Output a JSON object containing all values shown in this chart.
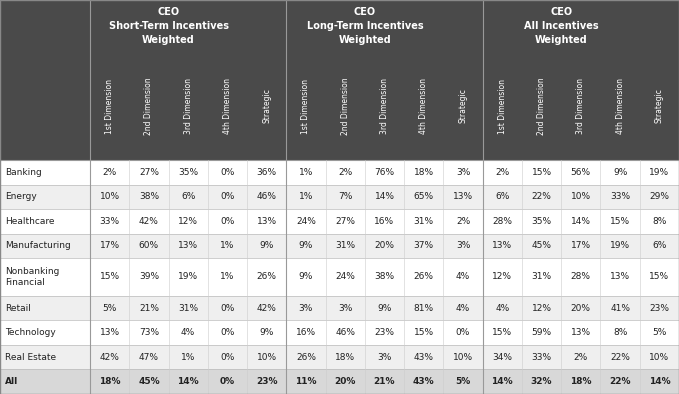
{
  "header_bg": "#4a4a4a",
  "header_text_color": "#ffffff",
  "text_color": "#222222",
  "group_headers": [
    "CEO\nShort-Term Incentives\nWeighted",
    "CEO\nLong-Term Incentives\nWeighted",
    "CEO\nAll Incentives\nWeighted"
  ],
  "col_headers": [
    "1st Dimension",
    "2nd Dimension",
    "3rd Dimension",
    "4th Dimension",
    "Strategic",
    "1st Dimension",
    "2nd Dimension",
    "3rd Dimension",
    "4th Dimension",
    "Strategic",
    "1st Dimension",
    "2nd Dimension",
    "3rd Dimension",
    "4th Dimension",
    "Strategic"
  ],
  "col_header_superscripts": [
    "st",
    "nd",
    "rd",
    "th",
    "",
    "st",
    "nd",
    "rd",
    "th",
    "",
    "st",
    "nd",
    "rd",
    "th",
    ""
  ],
  "col_header_nums": [
    "1",
    "2",
    "3",
    "4",
    "",
    "1",
    "2",
    "3",
    "4",
    "",
    "1",
    "2",
    "3",
    "4",
    ""
  ],
  "col_header_words": [
    " Dimension",
    " Dimension",
    " Dimension",
    " Dimension",
    "Strategic",
    " Dimension",
    " Dimension",
    " Dimension",
    " Dimension",
    "Strategic",
    " Dimension",
    " Dimension",
    " Dimension",
    " Dimension",
    "Strategic"
  ],
  "row_labels": [
    "Banking",
    "Energy",
    "Healthcare",
    "Manufacturing",
    "Nonbanking\nFinancial",
    "Retail",
    "Technology",
    "Real Estate",
    "All"
  ],
  "row_is_two_line": [
    false,
    false,
    false,
    false,
    true,
    false,
    false,
    false,
    false
  ],
  "row_is_last": [
    false,
    false,
    false,
    false,
    false,
    false,
    false,
    false,
    true
  ],
  "table_data": [
    [
      "2%",
      "27%",
      "35%",
      "0%",
      "36%",
      "1%",
      "2%",
      "76%",
      "18%",
      "3%",
      "2%",
      "15%",
      "56%",
      "9%",
      "19%"
    ],
    [
      "10%",
      "38%",
      "6%",
      "0%",
      "46%",
      "1%",
      "7%",
      "14%",
      "65%",
      "13%",
      "6%",
      "22%",
      "10%",
      "33%",
      "29%"
    ],
    [
      "33%",
      "42%",
      "12%",
      "0%",
      "13%",
      "24%",
      "27%",
      "16%",
      "31%",
      "2%",
      "28%",
      "35%",
      "14%",
      "15%",
      "8%"
    ],
    [
      "17%",
      "60%",
      "13%",
      "1%",
      "9%",
      "9%",
      "31%",
      "20%",
      "37%",
      "3%",
      "13%",
      "45%",
      "17%",
      "19%",
      "6%"
    ],
    [
      "15%",
      "39%",
      "19%",
      "1%",
      "26%",
      "9%",
      "24%",
      "38%",
      "26%",
      "4%",
      "12%",
      "31%",
      "28%",
      "13%",
      "15%"
    ],
    [
      "5%",
      "21%",
      "31%",
      "0%",
      "42%",
      "3%",
      "3%",
      "9%",
      "81%",
      "4%",
      "4%",
      "12%",
      "20%",
      "41%",
      "23%"
    ],
    [
      "13%",
      "73%",
      "4%",
      "0%",
      "9%",
      "16%",
      "46%",
      "23%",
      "15%",
      "0%",
      "15%",
      "59%",
      "13%",
      "8%",
      "5%"
    ],
    [
      "42%",
      "47%",
      "1%",
      "0%",
      "10%",
      "26%",
      "18%",
      "3%",
      "43%",
      "10%",
      "34%",
      "33%",
      "2%",
      "22%",
      "10%"
    ],
    [
      "18%",
      "45%",
      "14%",
      "0%",
      "23%",
      "11%",
      "20%",
      "21%",
      "43%",
      "5%",
      "14%",
      "32%",
      "18%",
      "22%",
      "14%"
    ]
  ],
  "figsize": [
    6.79,
    3.94
  ],
  "dpi": 100
}
